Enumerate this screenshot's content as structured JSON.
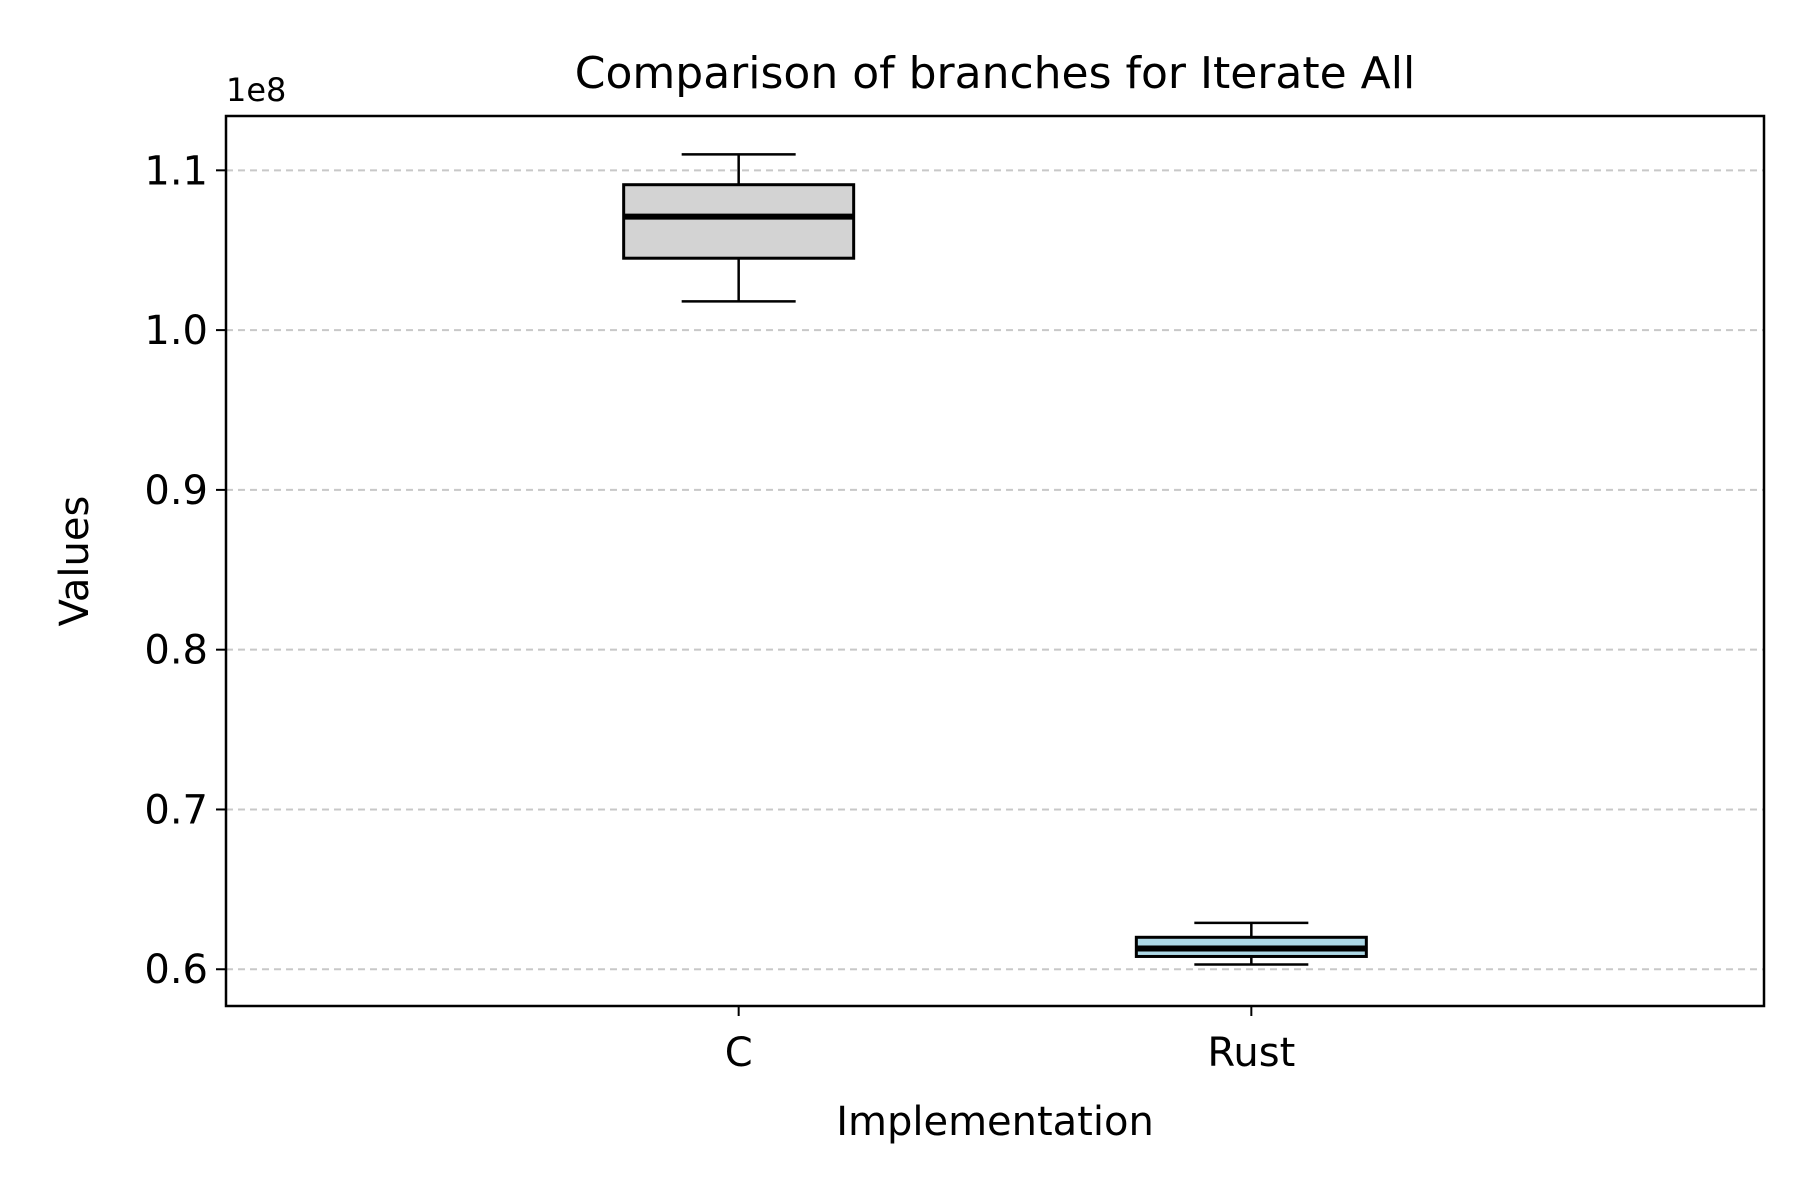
{
  "chart_data": {
    "type": "box",
    "title": "Comparison of branches for Iterate All",
    "xlabel": "Implementation",
    "ylabel": "Values",
    "y_offset_label": "1e8",
    "ylim": [
      0.577,
      1.134
    ],
    "yticks": [
      0.6,
      0.7,
      0.8,
      0.9,
      1.0,
      1.1
    ],
    "ytick_labels": [
      "0.6",
      "0.7",
      "0.8",
      "0.9",
      "1.0",
      "1.1"
    ],
    "grid": "horizontal dashed",
    "categories": [
      "C",
      "Rust"
    ],
    "boxes": [
      {
        "category": "C",
        "whisker_low": 1.018,
        "q1": 1.045,
        "median": 1.071,
        "q3": 1.091,
        "whisker_high": 1.11,
        "color": "#d3d3d3"
      },
      {
        "category": "Rust",
        "whisker_low": 0.603,
        "q1": 0.608,
        "median": 0.613,
        "q3": 0.62,
        "whisker_high": 0.629,
        "color": "#add8e6"
      }
    ]
  }
}
